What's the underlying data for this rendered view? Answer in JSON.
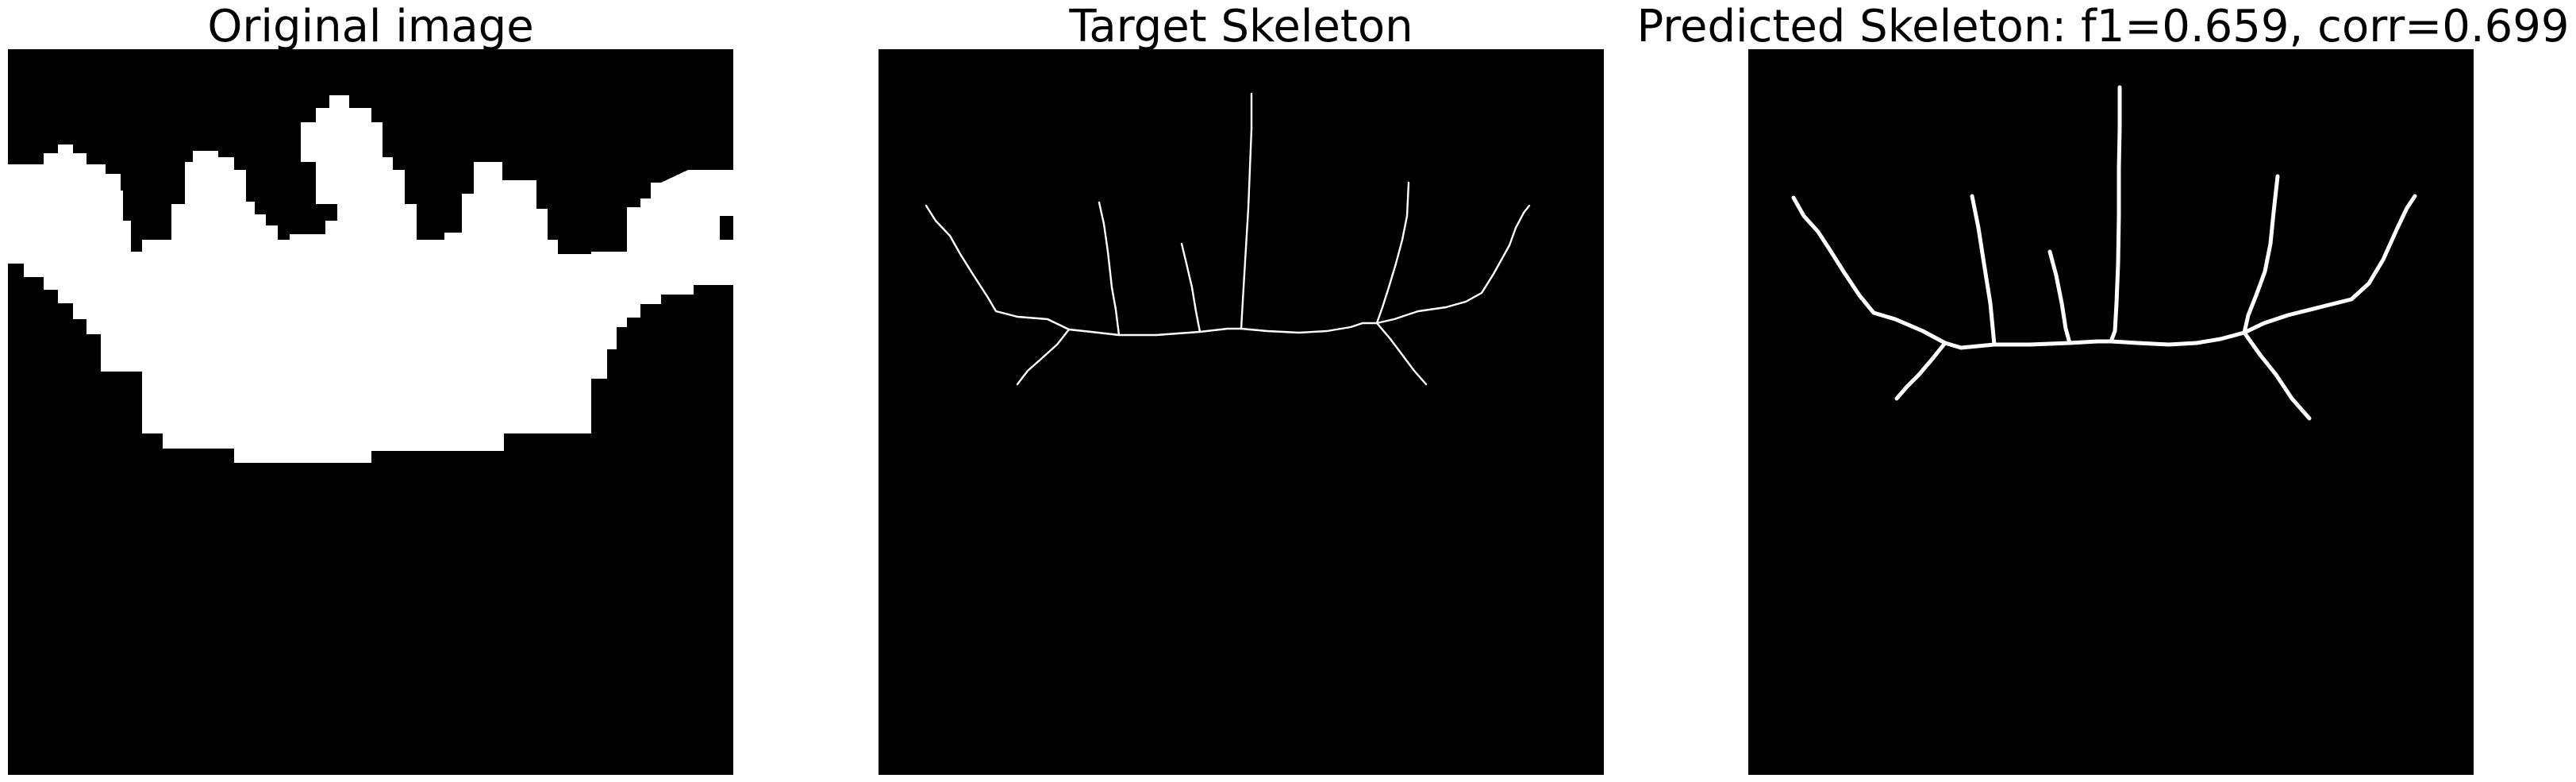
{
  "figure": {
    "panels": [
      {
        "title": "Original image",
        "content": "binary-silhouette"
      },
      {
        "title": "Target Skeleton",
        "content": "skeleton-thin"
      },
      {
        "title": "Predicted Skeleton: f1=0.659, corr=0.699",
        "content": "skeleton-thick"
      }
    ]
  },
  "colors": {
    "background": "#000000",
    "foreground": "#ffffff",
    "page": "#ffffff"
  }
}
